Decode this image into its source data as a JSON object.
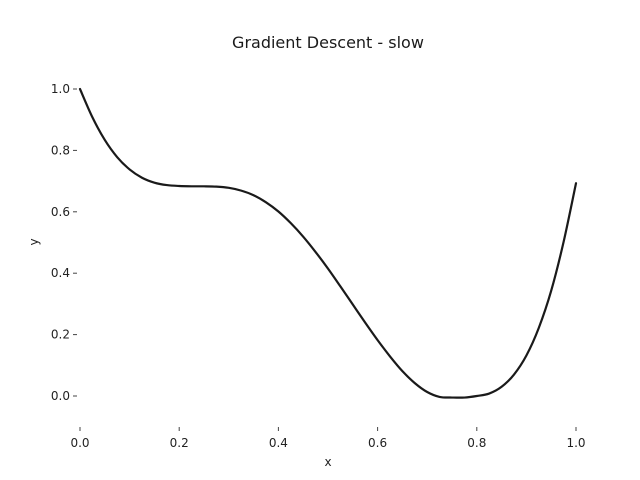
{
  "chart_data": {
    "type": "line",
    "title": "Gradient Descent - slow",
    "xlabel": "x",
    "ylabel": "y",
    "xlim": [
      0.0,
      1.0
    ],
    "ylim": [
      -0.1,
      1.05
    ],
    "xticks": [
      "0.0",
      "0.2",
      "0.4",
      "0.6",
      "0.8",
      "1.0"
    ],
    "yticks": [
      "0.0",
      "0.2",
      "0.4",
      "0.6",
      "0.8",
      "1.0"
    ],
    "grid": false,
    "legend": "none",
    "colors": {
      "line": "#1a1a1a"
    },
    "series": [
      {
        "x": [
          0.0,
          0.025,
          0.05,
          0.075,
          0.1,
          0.125,
          0.15,
          0.175,
          0.2,
          0.225,
          0.25,
          0.275,
          0.3,
          0.325,
          0.35,
          0.375,
          0.4,
          0.425,
          0.45,
          0.475,
          0.5,
          0.525,
          0.55,
          0.575,
          0.6,
          0.625,
          0.65,
          0.675,
          0.7,
          0.725,
          0.75,
          0.775,
          0.8,
          0.825,
          0.85,
          0.875,
          0.9,
          0.925,
          0.95,
          0.975,
          1.0
        ],
        "y": [
          1.0,
          0.908,
          0.834,
          0.778,
          0.738,
          0.711,
          0.695,
          0.687,
          0.684,
          0.683,
          0.683,
          0.682,
          0.678,
          0.669,
          0.654,
          0.631,
          0.601,
          0.563,
          0.519,
          0.469,
          0.415,
          0.357,
          0.298,
          0.239,
          0.182,
          0.129,
          0.081,
          0.042,
          0.013,
          -0.003,
          -0.005,
          -0.005,
          0.0,
          0.008,
          0.03,
          0.07,
          0.132,
          0.222,
          0.343,
          0.502,
          0.693
        ]
      }
    ]
  }
}
